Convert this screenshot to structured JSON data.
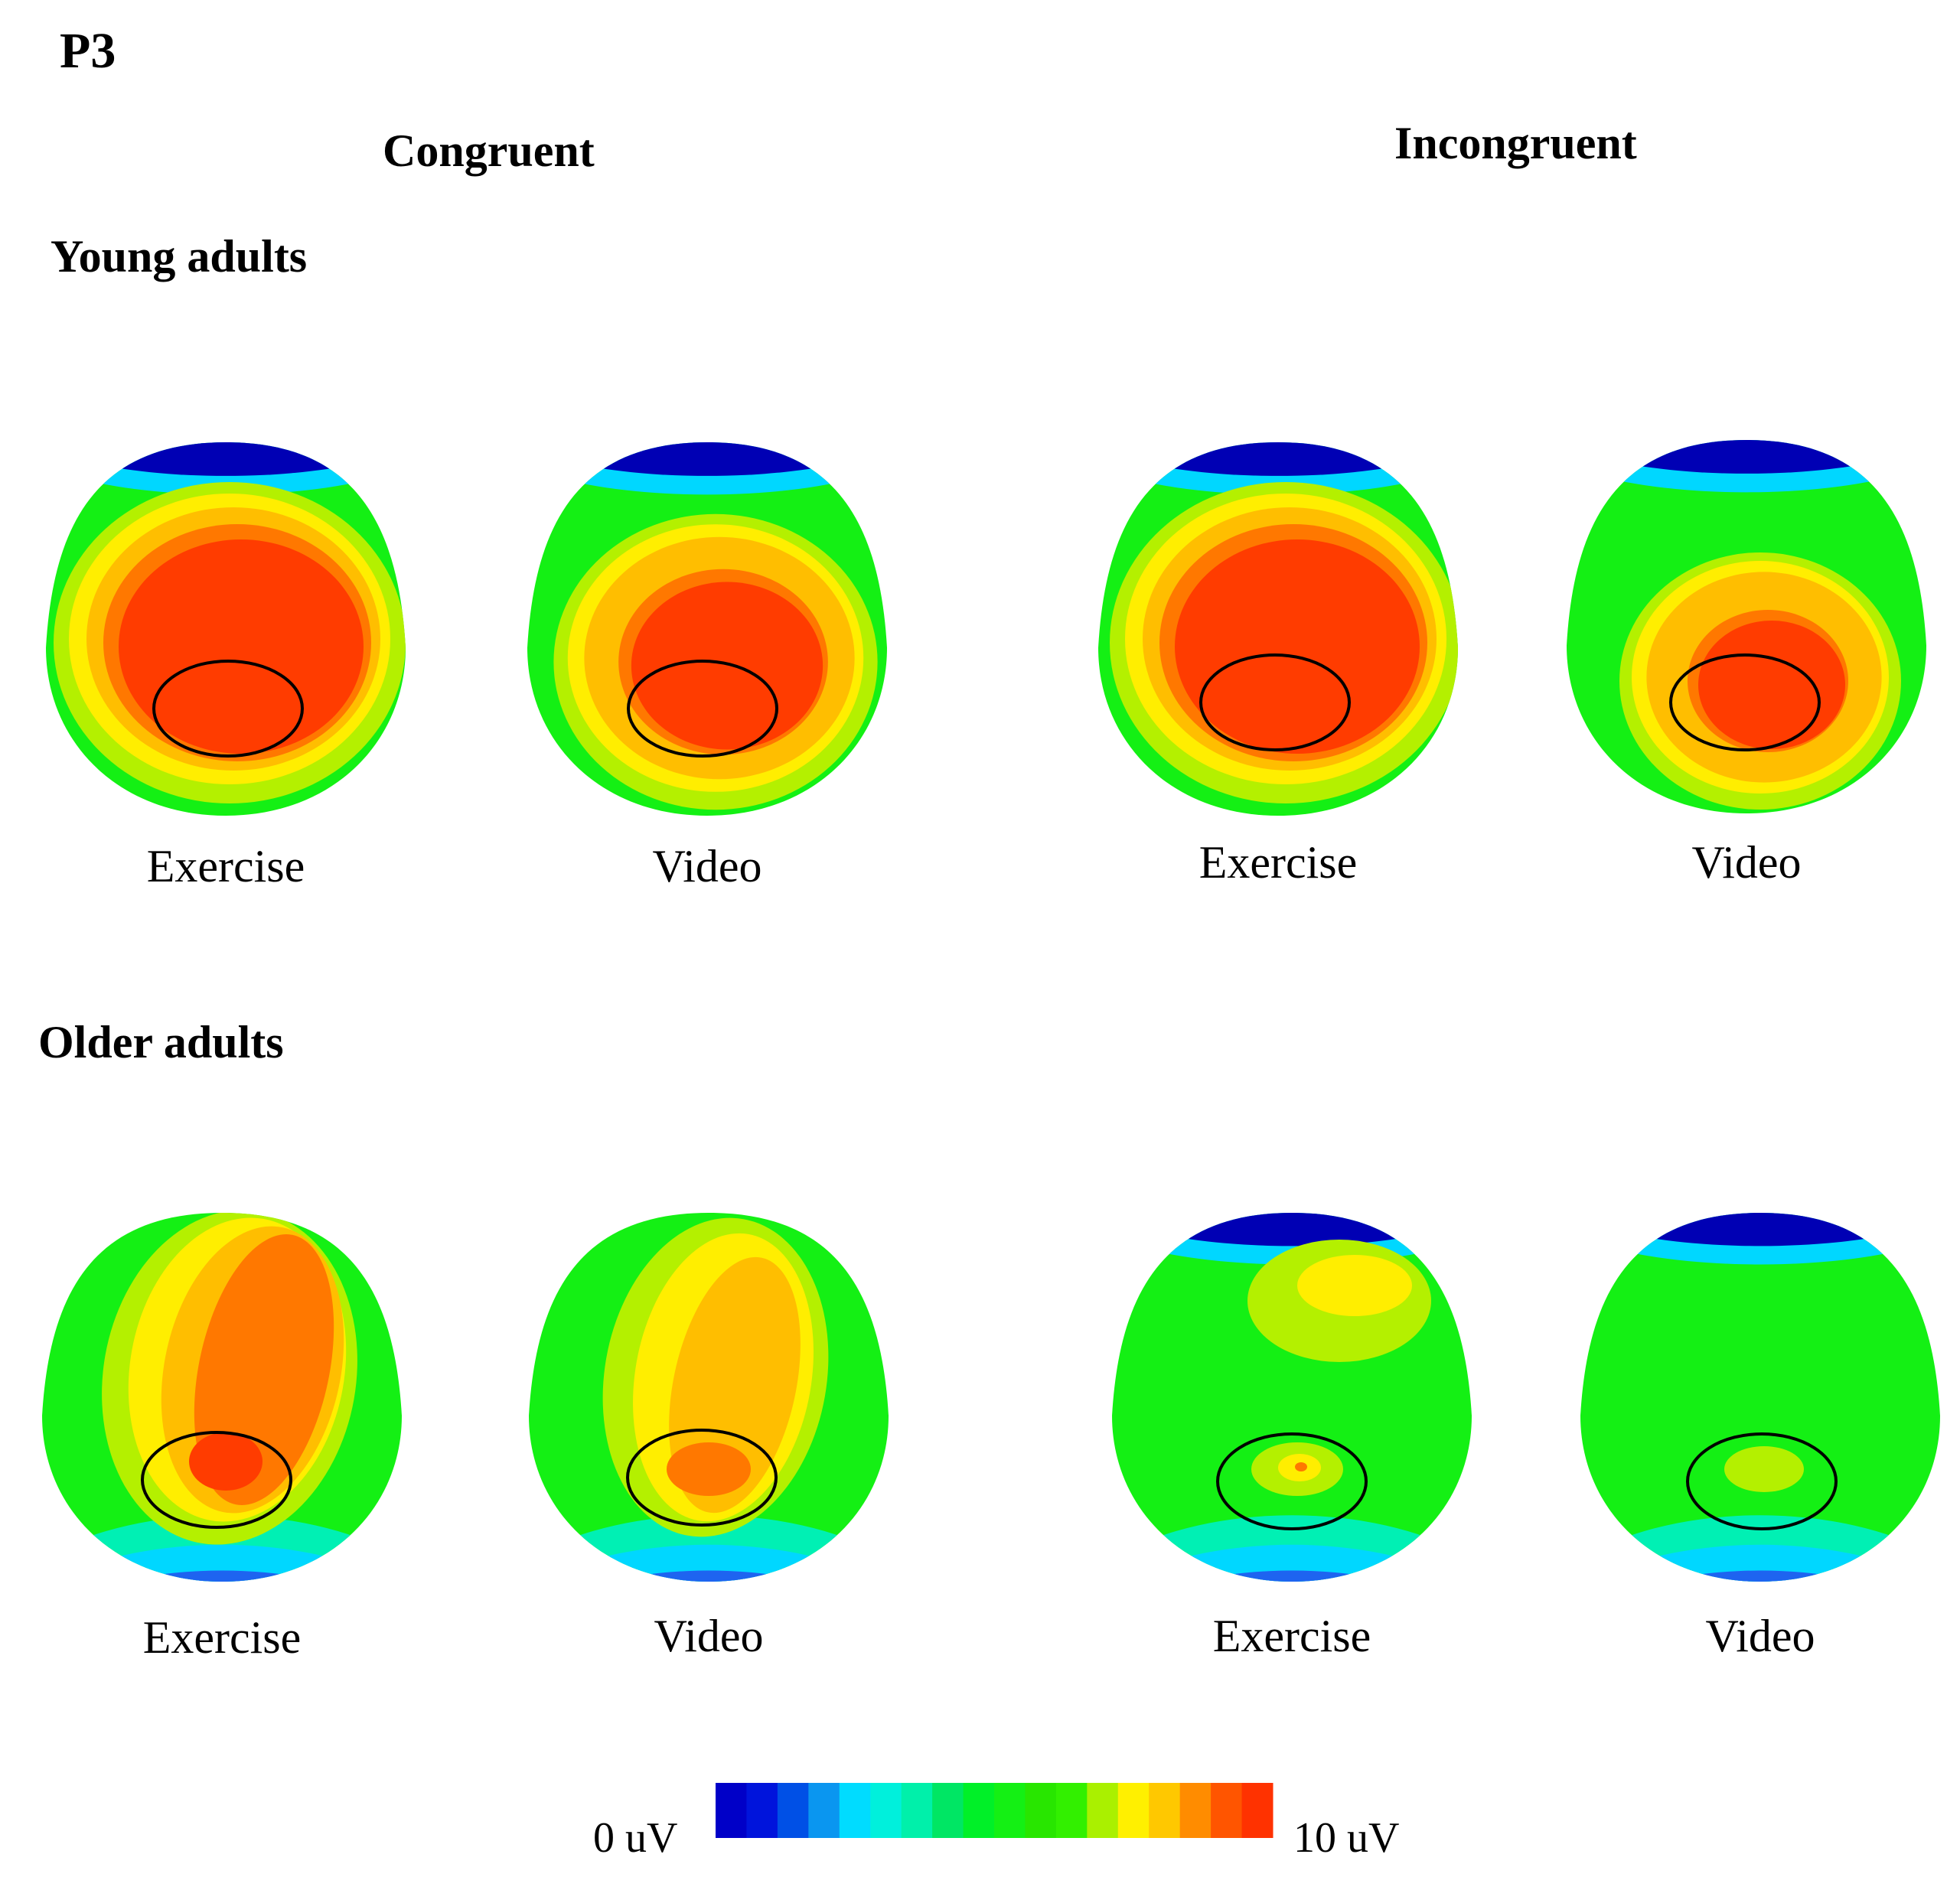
{
  "figure": {
    "component_label": "P3",
    "conditions": [
      "Congruent",
      "Incongruent"
    ],
    "groups": [
      "Young adults",
      "Older adults"
    ],
    "panel_labels": {
      "exercise": "Exercise",
      "video": "Video"
    },
    "colorbar": {
      "min_label": "0 uV",
      "max_label": "10 uV",
      "colors": [
        "#0000c8",
        "#0014dc",
        "#0050e6",
        "#0a96f0",
        "#00dcff",
        "#00f0dc",
        "#00f0aa",
        "#00e664",
        "#00f028",
        "#14f014",
        "#28e600",
        "#32f000",
        "#aaf000",
        "#fff000",
        "#ffc800",
        "#ff8c00",
        "#ff5500",
        "#ff3200"
      ]
    },
    "topomap_colors": {
      "dark_blue": "#0000b4",
      "blue": "#1e64f0",
      "cyan": "#00d7ff",
      "aqua": "#00f0b4",
      "green": "#14f014",
      "yellow_green": "#b4f000",
      "yellow": "#ffee00",
      "orange_yellow": "#ffbe00",
      "orange": "#ff7800",
      "red": "#ff3c00",
      "outline": "#000000"
    }
  }
}
